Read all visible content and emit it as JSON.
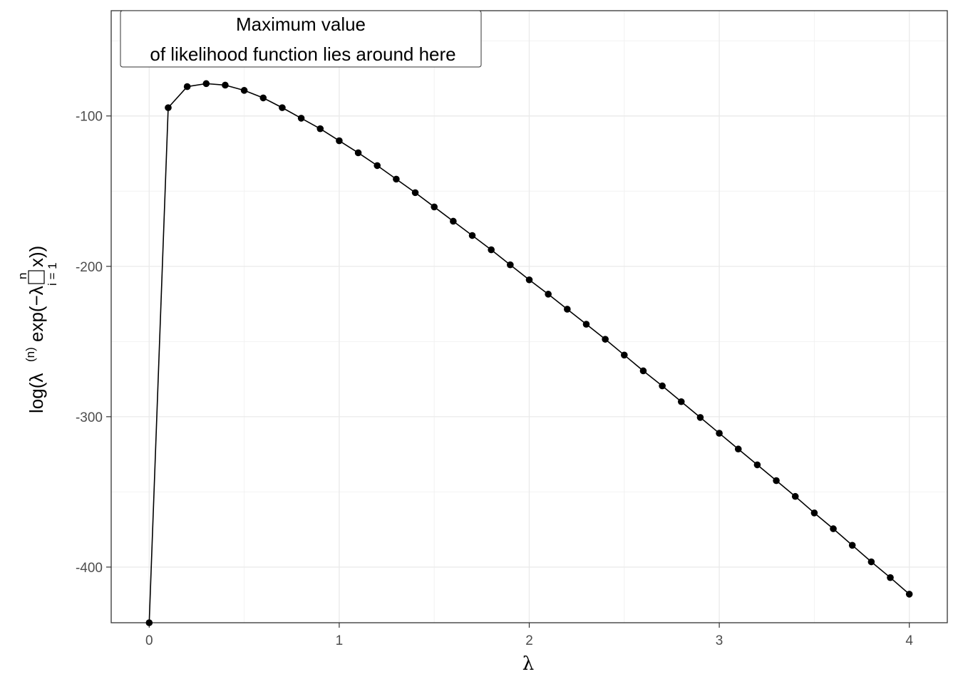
{
  "chart_data": {
    "type": "line",
    "title": "",
    "xlabel": "λ",
    "ylabel": {
      "prefix": "log(λ",
      "superscript": "(n)",
      "middle": "exp(−λ",
      "sum_upper": "n",
      "sum_lower": "i = 1",
      "suffix": "x))"
    },
    "xlim": [
      -0.2,
      4.2
    ],
    "ylim": [
      -437,
      -30
    ],
    "x_ticks": [
      0,
      1,
      2,
      3,
      4
    ],
    "y_ticks": [
      -100,
      -200,
      -300,
      -400
    ],
    "grid": true,
    "annotation": {
      "line1": "Maximum value",
      "line2": "of likelihood function lies around here"
    },
    "series": [
      {
        "points": [
          [
            0.0,
            -437
          ],
          [
            0.1,
            -94.5
          ],
          [
            0.2,
            -80.5
          ],
          [
            0.3,
            -78.5
          ],
          [
            0.4,
            -79.5
          ],
          [
            0.5,
            -83.0
          ],
          [
            0.6,
            -88.0
          ],
          [
            0.7,
            -94.5
          ],
          [
            0.8,
            -101.5
          ],
          [
            0.9,
            -108.5
          ],
          [
            1.0,
            -116.5
          ],
          [
            1.1,
            -124.5
          ],
          [
            1.2,
            -133.0
          ],
          [
            1.3,
            -142.0
          ],
          [
            1.4,
            -151.0
          ],
          [
            1.5,
            -160.5
          ],
          [
            1.6,
            -170.0
          ],
          [
            1.7,
            -179.5
          ],
          [
            1.8,
            -189.0
          ],
          [
            1.9,
            -199.0
          ],
          [
            2.0,
            -209.0
          ],
          [
            2.1,
            -218.5
          ],
          [
            2.2,
            -228.5
          ],
          [
            2.3,
            -238.5
          ],
          [
            2.4,
            -248.5
          ],
          [
            2.5,
            -259.0
          ],
          [
            2.6,
            -269.5
          ],
          [
            2.7,
            -279.5
          ],
          [
            2.8,
            -290.0
          ],
          [
            2.9,
            -300.5
          ],
          [
            3.0,
            -311.0
          ],
          [
            3.1,
            -321.5
          ],
          [
            3.2,
            -332.0
          ],
          [
            3.3,
            -342.5
          ],
          [
            3.4,
            -353.0
          ],
          [
            3.5,
            -364.0
          ],
          [
            3.6,
            -374.5
          ],
          [
            3.7,
            -385.5
          ],
          [
            3.8,
            -396.5
          ],
          [
            3.9,
            -407.0
          ],
          [
            4.0,
            -418.0
          ]
        ]
      }
    ]
  }
}
